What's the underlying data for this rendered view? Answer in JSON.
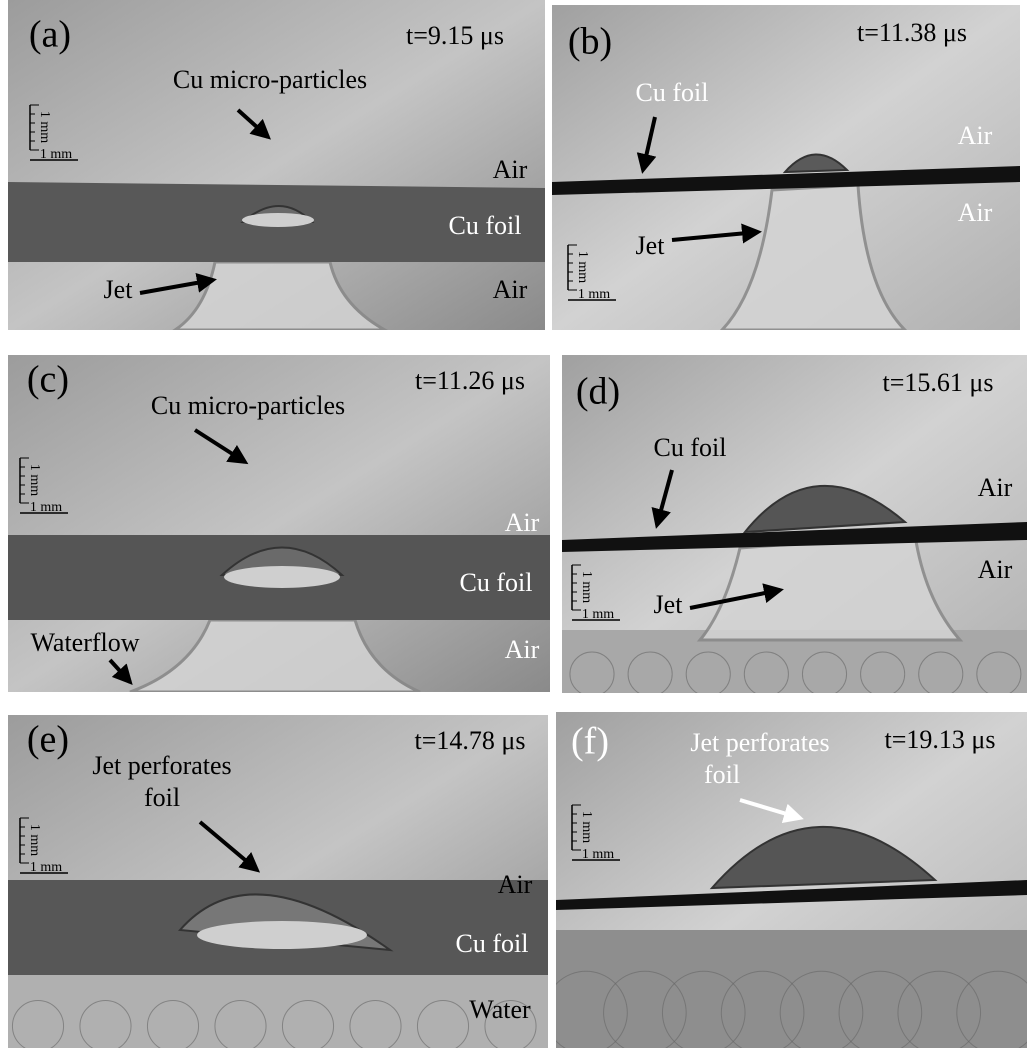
{
  "panels": [
    {
      "label": "(a)",
      "time": "t=9.15 μs",
      "scale_h": "1 mm",
      "scale_v": "1 mm",
      "annotations": [
        "Cu micro-particles",
        "Air",
        "Cu foil",
        "Jet",
        "Air"
      ]
    },
    {
      "label": "(b)",
      "time": "t=11.38 μs",
      "scale_h": "1 mm",
      "scale_v": "1 mm",
      "annotations": [
        "Cu foil",
        "Air",
        "Air",
        "Jet"
      ]
    },
    {
      "label": "(c)",
      "time": "t=11.26 μs",
      "scale_h": "1 mm",
      "scale_v": "1 mm",
      "annotations": [
        "Cu micro-particles",
        "Air",
        "Cu foil",
        "Waterflow",
        "Air"
      ]
    },
    {
      "label": "(d)",
      "time": "t=15.61 μs",
      "scale_h": "1 mm",
      "scale_v": "1 mm",
      "annotations": [
        "Cu foil",
        "Air",
        "Air",
        "Jet"
      ]
    },
    {
      "label": "(e)",
      "time": "t=14.78 μs",
      "scale_h": "1 mm",
      "scale_v": "1 mm",
      "annotations": [
        "Jet perforates",
        "foil",
        "Air",
        "Cu foil",
        "Water"
      ]
    },
    {
      "label": "(f)",
      "time": "t=19.13 μs",
      "scale_h": "1 mm",
      "scale_v": "1 mm",
      "annotations": [
        "Jet perforates",
        "foil"
      ]
    }
  ]
}
